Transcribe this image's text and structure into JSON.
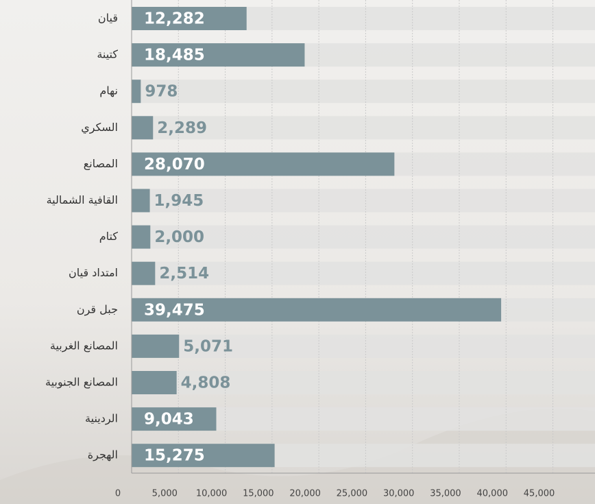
{
  "chart_data": {
    "type": "hbar",
    "categories": [
      "قيان",
      "كتينة",
      "نهام",
      "السكري",
      "المصانع",
      "القافية الشمالية",
      "كتام",
      "امتداد قيان",
      "جبل قرن",
      "المصانع الغربية",
      "المصانع الجنوبية",
      "الردينية",
      "الهجرة"
    ],
    "values": [
      12282,
      18485,
      978,
      2289,
      28070,
      1945,
      2000,
      2514,
      39475,
      5071,
      4808,
      9043,
      15275
    ],
    "value_labels": [
      "12,282",
      "18,485",
      "978",
      "2,289",
      "28,070",
      "1,945",
      "2,000",
      "2,514",
      "39,475",
      "5,071",
      "4,808",
      "9,043",
      "15,275"
    ],
    "color": "#7b9299",
    "xlim": [
      0,
      49500
    ],
    "xticks": [
      0,
      {
        "value": 5000,
        "label": "5,000"
      },
      {
        "value": 10000,
        "label": "10,000"
      },
      {
        "value": 15000,
        "label": "15,000"
      },
      {
        "value": 20000,
        "label": "20,000"
      },
      {
        "value": 25000,
        "label": "25,000"
      },
      {
        "value": 30000,
        "label": "30,000"
      },
      {
        "value": 35000,
        "label": "35,000"
      },
      {
        "value": 40000,
        "label": "40,000"
      },
      {
        "value": 45000,
        "label": "45,000"
      }
    ],
    "grid": true
  }
}
